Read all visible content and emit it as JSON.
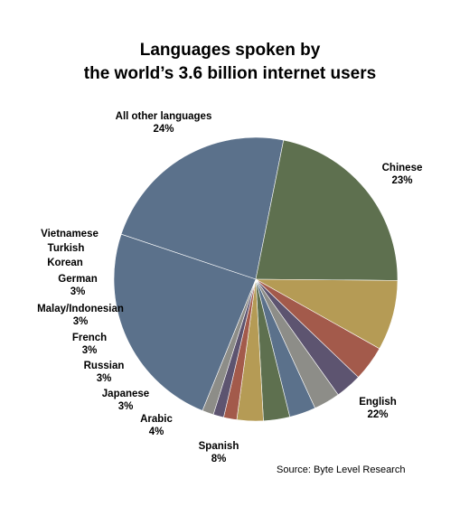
{
  "chart_data": {
    "type": "pie",
    "title": [
      "Languages spoken by",
      "the world’s 3.6 billion internet users"
    ],
    "source": "Source: Byte Level Research",
    "slices": [
      {
        "label": "Chinese",
        "value_label": "23%",
        "value": 23,
        "color": "#5b718b"
      },
      {
        "label": "English",
        "value_label": "22%",
        "value": 22,
        "color": "#5e704f"
      },
      {
        "label": "Spanish",
        "value_label": "8%",
        "value": 8,
        "color": "#b59b55"
      },
      {
        "label": "Arabic",
        "value_label": "4%",
        "value": 4,
        "color": "#a35a4b"
      },
      {
        "label": "Japanese",
        "value_label": "3%",
        "value": 3,
        "color": "#5d5470"
      },
      {
        "label": "Russian",
        "value_label": "3%",
        "value": 3,
        "color": "#8d8d88"
      },
      {
        "label": "French",
        "value_label": "3%",
        "value": 3,
        "color": "#5b718b"
      },
      {
        "label": "Malay/Indonesian",
        "value_label": "3%",
        "value": 3,
        "color": "#5e704f"
      },
      {
        "label": "German",
        "value_label": "3%",
        "value": 3,
        "color": "#b59b55"
      },
      {
        "label": "Korean",
        "value_label": "",
        "value": 1.5,
        "color": "#a35a4b"
      },
      {
        "label": "Turkish",
        "value_label": "",
        "value": 1.2,
        "color": "#5d5470"
      },
      {
        "label": "Vietnamese",
        "value_label": "",
        "value": 1.3,
        "color": "#8d8d88"
      },
      {
        "label": "All other languages",
        "value_label": "24%",
        "value": 24,
        "color": "#5b718b"
      }
    ]
  }
}
